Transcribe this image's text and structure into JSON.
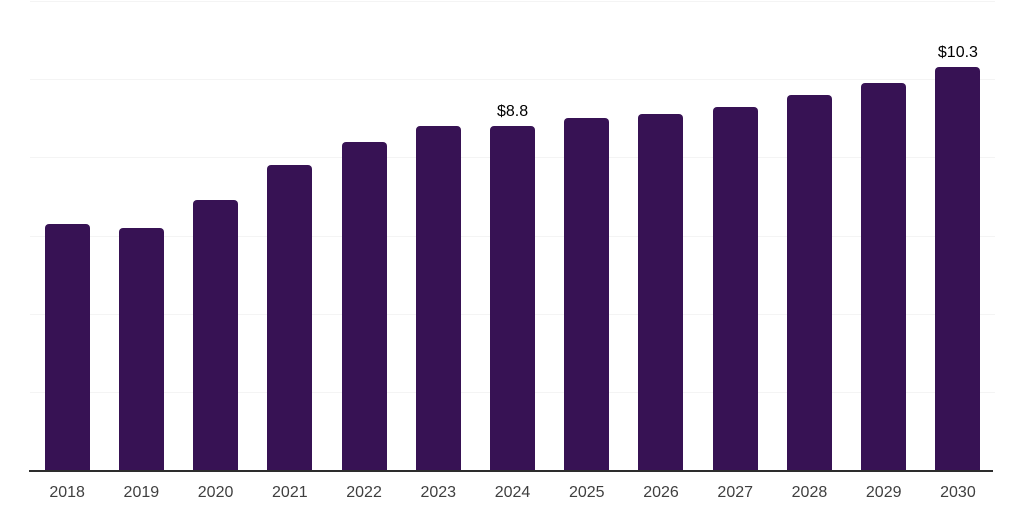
{
  "chart_data": {
    "type": "bar",
    "title": "",
    "xlabel": "",
    "ylabel": "",
    "categories": [
      "2018",
      "2019",
      "2020",
      "2021",
      "2022",
      "2023",
      "2024",
      "2025",
      "2026",
      "2027",
      "2028",
      "2029",
      "2030"
    ],
    "values": [
      6.3,
      6.2,
      6.9,
      7.8,
      8.4,
      8.8,
      8.8,
      9.0,
      9.1,
      9.3,
      9.6,
      9.9,
      10.3
    ],
    "bar_labels": [
      "",
      "",
      "",
      "",
      "",
      "",
      "$8.8",
      "",
      "",
      "",
      "",
      "",
      "$10.3"
    ],
    "ylim": [
      0,
      12
    ],
    "gridline_values": [
      2,
      4,
      6,
      8,
      10,
      12
    ],
    "grid": "horizontal",
    "legend": "none",
    "y_axis_ticks_visible": false,
    "bar_color": "#371254",
    "axis_line_color": "#2d2d2d",
    "gridline_color": "#f4f4f4",
    "tick_label_color": "#3f3f3f",
    "value_label_color": "#000000"
  }
}
